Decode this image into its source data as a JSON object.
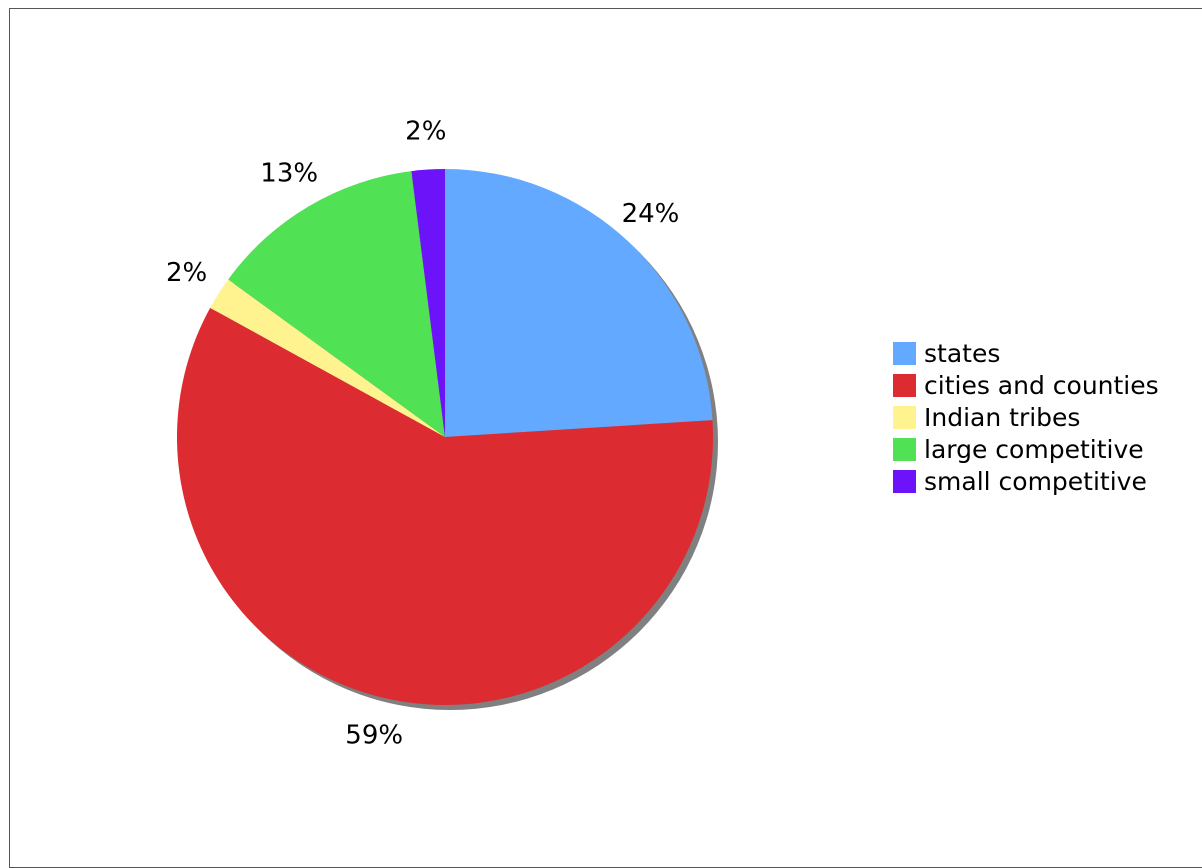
{
  "chart_data": {
    "type": "pie",
    "title": "",
    "start_angle": "12 o'clock",
    "direction": "clockwise",
    "legend_position": "right",
    "slices": [
      {
        "name": "states",
        "value": 24,
        "label": "24%",
        "color": "#62a9ff"
      },
      {
        "name": "cities and counties",
        "value": 59,
        "label": "59%",
        "color": "#dc2c31"
      },
      {
        "name": "Indian tribes",
        "value": 2,
        "label": "2%",
        "color": "#fff38f"
      },
      {
        "name": "large competitive",
        "value": 13,
        "label": "13%",
        "color": "#50e155"
      },
      {
        "name": "small competitive",
        "value": 2,
        "label": "2%",
        "color": "#6c13f9"
      }
    ],
    "shadow_color": "#808080"
  }
}
